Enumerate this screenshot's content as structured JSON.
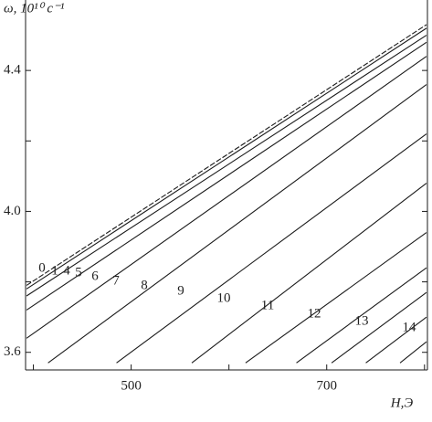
{
  "chart_data": {
    "type": "line",
    "y_label": "ω, 10¹⁰ c⁻¹",
    "x_label": "H,Э",
    "xlim": [
      392,
      803
    ],
    "ylim": [
      3.55,
      4.6
    ],
    "xticks": [
      {
        "value": 400,
        "label": null
      },
      500,
      {
        "value": 600,
        "label": null
      },
      700,
      {
        "value": 800,
        "label": null
      }
    ],
    "yticks": [
      3.6,
      {
        "value": 3.8,
        "label": null
      },
      {
        "value": 4.0,
        "label": "4.0"
      },
      {
        "value": 4.2,
        "label": null
      },
      4.4
    ],
    "color": "#1a1a1a",
    "series": [
      {
        "name": "0",
        "x": [
          393,
          802
        ],
        "values": [
          3.79,
          4.53
        ]
      },
      {
        "name": "1",
        "x": [
          393,
          802
        ],
        "values": [
          3.78,
          4.52
        ]
      },
      {
        "name": "4",
        "x": [
          393,
          802
        ],
        "values": [
          3.76,
          4.5
        ]
      },
      {
        "name": "5",
        "x": [
          393,
          802
        ],
        "values": [
          3.72,
          4.48
        ]
      },
      {
        "name": "6",
        "x": [
          393,
          802
        ],
        "values": [
          3.64,
          4.44
        ]
      },
      {
        "name": "7",
        "x": [
          415,
          802
        ],
        "values": [
          3.57,
          4.36
        ]
      },
      {
        "name": "8",
        "x": [
          485,
          802
        ],
        "values": [
          3.57,
          4.22
        ]
      },
      {
        "name": "9",
        "x": [
          562,
          802
        ],
        "values": [
          3.57,
          4.08
        ]
      },
      {
        "name": "10",
        "x": [
          617,
          802
        ],
        "values": [
          3.57,
          3.94
        ]
      },
      {
        "name": "11",
        "x": [
          669,
          802
        ],
        "values": [
          3.57,
          3.84
        ]
      },
      {
        "name": "12",
        "x": [
          705,
          802
        ],
        "values": [
          3.57,
          3.77
        ]
      },
      {
        "name": "13",
        "x": [
          740,
          802
        ],
        "values": [
          3.57,
          3.7
        ]
      },
      {
        "name": "14",
        "x": [
          775,
          802
        ],
        "values": [
          3.57,
          3.63
        ]
      }
    ]
  }
}
